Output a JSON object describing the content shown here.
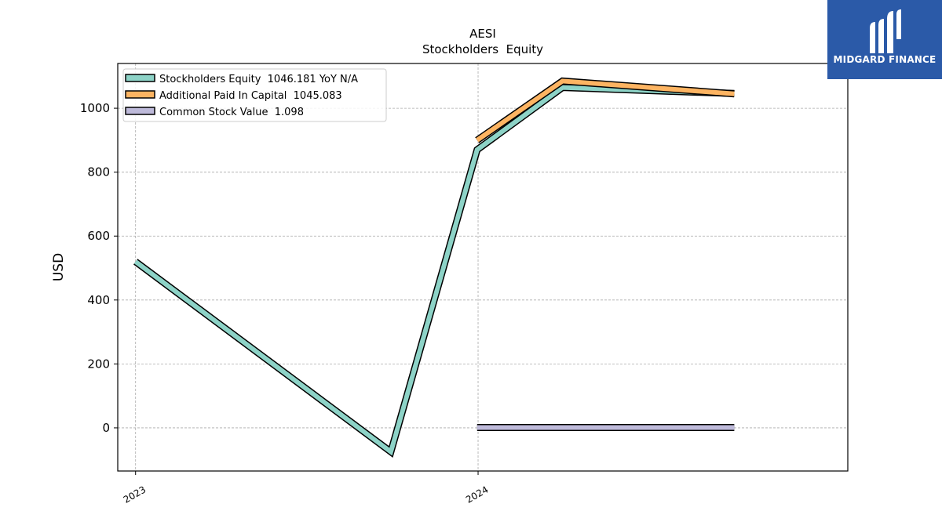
{
  "chart_data": {
    "type": "line",
    "title": "AESI",
    "subtitle": "Stockholders  Equity",
    "xlabel": "",
    "ylabel": "USD",
    "x_ticks": [
      "2023",
      "2024"
    ],
    "y_ticks": [
      0,
      200,
      400,
      600,
      800,
      1000
    ],
    "ylim": [
      -135,
      1140
    ],
    "xlim": [
      "2022-12-13",
      "2025-01-29"
    ],
    "grid": true,
    "legend_position": "top-left",
    "series": [
      {
        "name": "Stockholders Equity  1046.181 YoY N/A",
        "color": "#8dd3c7",
        "points": [
          {
            "x": "2023-01-01",
            "y": 520
          },
          {
            "x": "2023-09-30",
            "y": -75
          },
          {
            "x": "2023-12-31",
            "y": 870
          },
          {
            "x": "2024-03-31",
            "y": 1065
          },
          {
            "x": "2024-09-30",
            "y": 1046
          }
        ]
      },
      {
        "name": "Additional Paid In Capital  1045.083",
        "color": "#fdb462",
        "points": [
          {
            "x": "2023-12-31",
            "y": 900
          },
          {
            "x": "2024-03-31",
            "y": 1085
          },
          {
            "x": "2024-09-30",
            "y": 1045
          }
        ]
      },
      {
        "name": "Common Stock Value  1.098",
        "color": "#bebada",
        "points": [
          {
            "x": "2023-12-31",
            "y": 1.1
          },
          {
            "x": "2024-03-31",
            "y": 1.1
          },
          {
            "x": "2024-09-30",
            "y": 1.098
          }
        ]
      }
    ]
  },
  "logo": {
    "text": "MIDGARD FINANCE",
    "background": "#2b5aa8"
  }
}
